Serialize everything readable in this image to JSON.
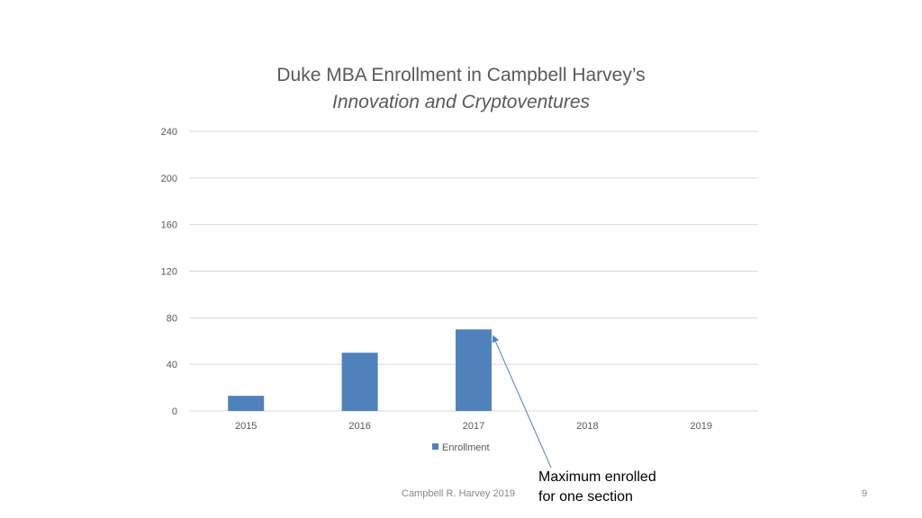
{
  "slide": {
    "title_line1": "Duke MBA Enrollment in Campbell Harvey’s",
    "title_line2": "Innovation and Cryptoventures",
    "footer_author": "Campbell R. Harvey 2019",
    "page_number": "9",
    "callout_line1": "Maximum enrolled",
    "callout_line2": "for one section"
  },
  "colors": {
    "bar": "#4f81bd",
    "grid": "#d9d9d9",
    "axis_text": "#595959",
    "arrow": "#4f81bd"
  },
  "chart_data": {
    "type": "bar",
    "title": "Duke MBA Enrollment in Campbell Harvey’s Innovation and Cryptoventures",
    "xlabel": "",
    "ylabel": "",
    "categories": [
      "2015",
      "2016",
      "2017",
      "2018",
      "2019"
    ],
    "series": [
      {
        "name": "Enrollment",
        "values": [
          13,
          50,
          70,
          null,
          null
        ]
      }
    ],
    "yticks": [
      "0",
      "40",
      "80",
      "120",
      "160",
      "200",
      "240"
    ],
    "ylim": [
      0,
      240
    ],
    "grid": true,
    "legend": "bottom-center",
    "annotation": {
      "text": "Maximum enrolled for one section",
      "points_to_category": "2017"
    }
  }
}
